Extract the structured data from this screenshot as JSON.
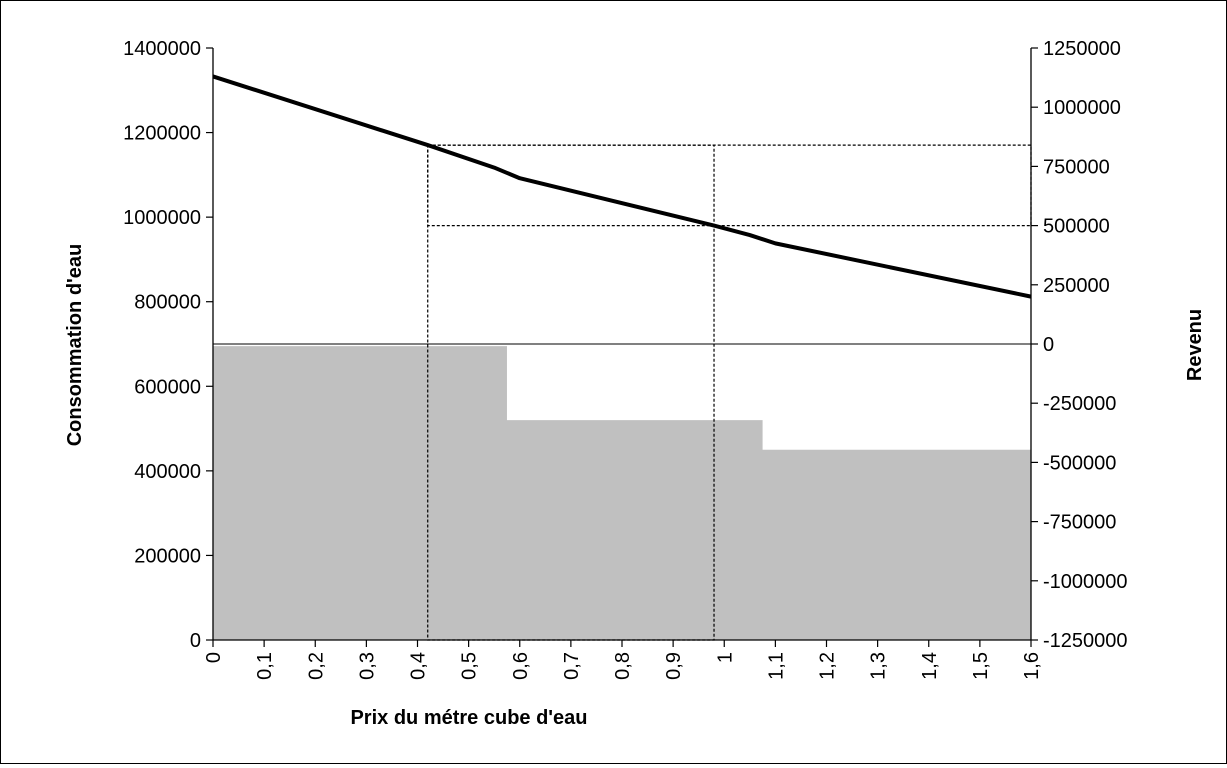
{
  "chart_data": {
    "type": "line",
    "xlabel": "Prix du métre cube d'eau",
    "ylabel": "Consommation d'eau",
    "y2label": "Revenu",
    "xlim": [
      0,
      1.6
    ],
    "ylim": [
      0,
      1400000
    ],
    "y2lim": [
      -1250000,
      1250000
    ],
    "grid": false,
    "x_ticks": [
      "0",
      "0,1",
      "0,2",
      "0,3",
      "0,4",
      "0,5",
      "0,6",
      "0,7",
      "0,8",
      "0,9",
      "1",
      "1,1",
      "1,2",
      "1,3",
      "1,4",
      "1,5",
      "1,6"
    ],
    "y_ticks": [
      "0",
      "200000",
      "400000",
      "600000",
      "800000",
      "1000000",
      "1200000",
      "1400000"
    ],
    "y2_ticks": [
      "-1250000",
      "-1000000",
      "-750000",
      "-500000",
      "-250000",
      "0",
      "250000",
      "500000",
      "750000",
      "1000000",
      "1250000"
    ],
    "series": [
      {
        "axis": "right",
        "style": "line",
        "x": [
          0,
          0.42,
          0.55,
          0.6,
          0.98,
          1.05,
          1.1,
          1.6
        ],
        "y": [
          1130000,
          840000,
          745000,
          700000,
          500000,
          460000,
          425000,
          200000
        ]
      },
      {
        "axis": "left",
        "style": "step-area",
        "x": [
          0,
          0.575,
          0.575,
          1.075,
          1.075,
          1.6
        ],
        "y": [
          695000,
          695000,
          520000,
          520000,
          450000,
          450000
        ]
      }
    ],
    "annotations": {
      "dashed_boxes": [
        {
          "x": [
            0.42,
            0.98
          ],
          "y2": [
            -1250000,
            840000
          ]
        },
        {
          "x": [
            0.42,
            1.6
          ],
          "y2": [
            500000,
            840000
          ]
        }
      ],
      "zero_line_y2": 0
    },
    "colors": {
      "line": "#000000",
      "area": "#c0c0c0",
      "axis": "#000000"
    }
  }
}
